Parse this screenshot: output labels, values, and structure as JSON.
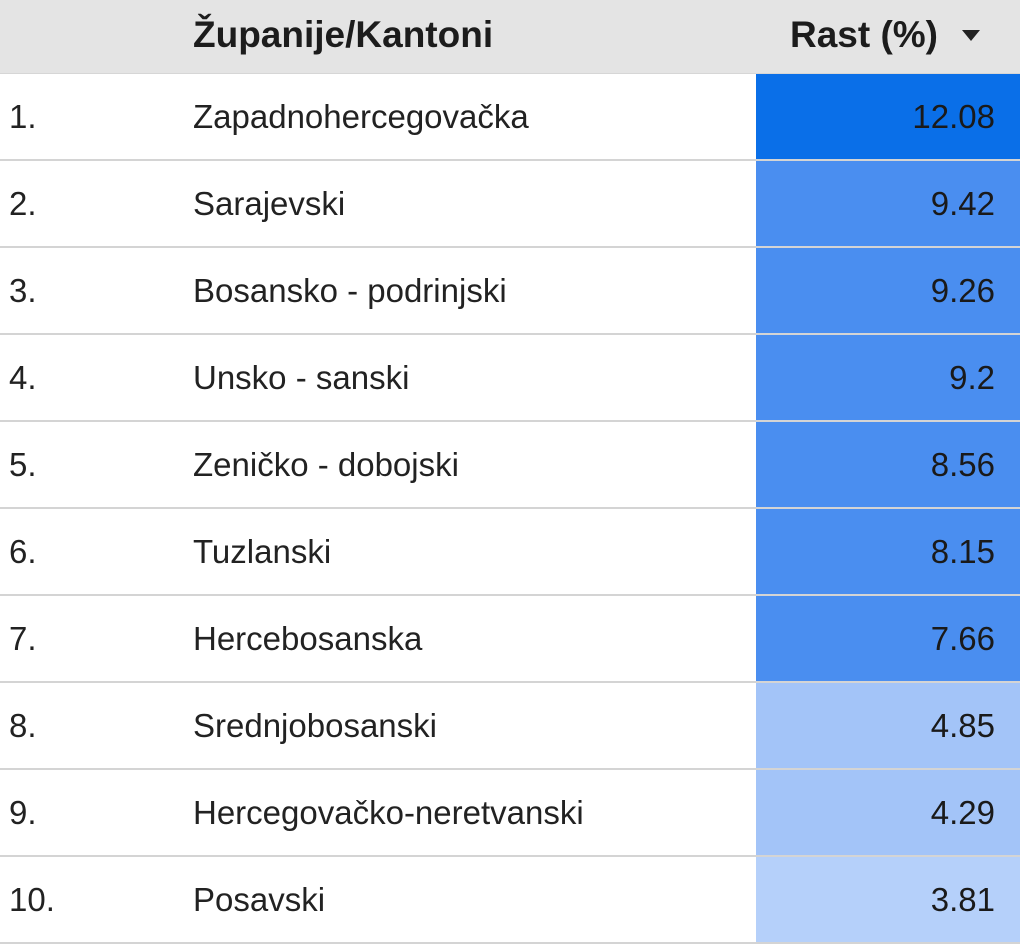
{
  "header": {
    "name_label": "Županije/Kantoni",
    "value_label": "Rast (%)",
    "sort_icon": "triangle-down-icon"
  },
  "colors": {
    "header_bg": "#e4e4e4",
    "strong": "#0a6fe8",
    "medium": "#4a8ef0",
    "light": "#a3c4f8",
    "lighter": "#b5d0fa"
  },
  "rows": [
    {
      "rank": "1.",
      "name": "Zapadnohercegovačka",
      "value": "12.08",
      "color": "#0a6fe8"
    },
    {
      "rank": "2.",
      "name": "Sarajevski",
      "value": "9.42",
      "color": "#4a8ef0"
    },
    {
      "rank": "3.",
      "name": "Bosansko - podrinjski",
      "value": "9.26",
      "color": "#4a8ef0"
    },
    {
      "rank": "4.",
      "name": "Unsko - sanski",
      "value": "9.2",
      "color": "#4a8ef0"
    },
    {
      "rank": "5.",
      "name": "Zeničko - dobojski",
      "value": "8.56",
      "color": "#4a8ef0"
    },
    {
      "rank": "6.",
      "name": "Tuzlanski",
      "value": "8.15",
      "color": "#4a8ef0"
    },
    {
      "rank": "7.",
      "name": "Hercebosanska",
      "value": "7.66",
      "color": "#4a8ef0"
    },
    {
      "rank": "8.",
      "name": "Srednjobosanski",
      "value": "4.85",
      "color": "#a3c4f8"
    },
    {
      "rank": "9.",
      "name": "Hercegovačko-neretvanski",
      "value": "4.29",
      "color": "#a3c4f8"
    },
    {
      "rank": "10.",
      "name": "Posavski",
      "value": "3.81",
      "color": "#b5d0fa"
    }
  ],
  "chart_data": {
    "type": "table",
    "columns": [
      "",
      "Županije/Kantoni",
      "Rast (%)"
    ],
    "sort": {
      "column": "Rast (%)",
      "direction": "descending"
    },
    "categories": [
      "Zapadnohercegovačka",
      "Sarajevski",
      "Bosansko - podrinjski",
      "Unsko - sanski",
      "Zeničko - dobojski",
      "Tuzlanski",
      "Hercebosanska",
      "Srednjobosanski",
      "Hercegovačko-neretvanski",
      "Posavski"
    ],
    "values": [
      12.08,
      9.42,
      9.26,
      9.2,
      8.56,
      8.15,
      7.66,
      4.85,
      4.29,
      3.81
    ]
  }
}
